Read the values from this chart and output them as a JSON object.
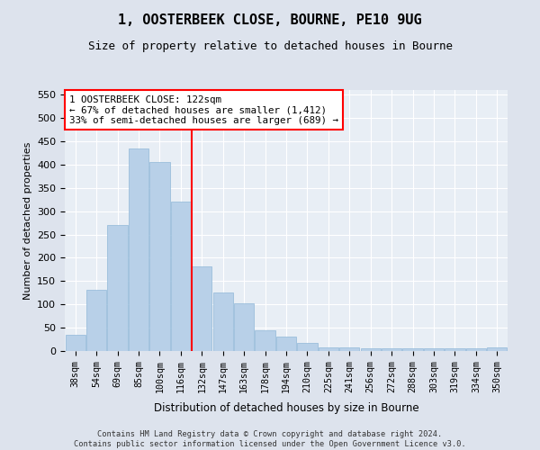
{
  "title": "1, OOSTERBEEK CLOSE, BOURNE, PE10 9UG",
  "subtitle": "Size of property relative to detached houses in Bourne",
  "xlabel": "Distribution of detached houses by size in Bourne",
  "ylabel": "Number of detached properties",
  "categories": [
    "38sqm",
    "54sqm",
    "69sqm",
    "85sqm",
    "100sqm",
    "116sqm",
    "132sqm",
    "147sqm",
    "163sqm",
    "178sqm",
    "194sqm",
    "210sqm",
    "225sqm",
    "241sqm",
    "256sqm",
    "272sqm",
    "288sqm",
    "303sqm",
    "319sqm",
    "334sqm",
    "350sqm"
  ],
  "values": [
    35,
    132,
    270,
    435,
    405,
    320,
    182,
    125,
    103,
    44,
    30,
    18,
    7,
    7,
    5,
    5,
    5,
    5,
    5,
    5,
    8
  ],
  "bar_color": "#b8d0e8",
  "bar_edge_color": "#90b8d8",
  "vline_x": 5.5,
  "vline_color": "red",
  "annotation_title": "1 OOSTERBEEK CLOSE: 122sqm",
  "annotation_line1": "← 67% of detached houses are smaller (1,412)",
  "annotation_line2": "33% of semi-detached houses are larger (689) →",
  "box_color": "red",
  "ylim": [
    0,
    560
  ],
  "yticks": [
    0,
    50,
    100,
    150,
    200,
    250,
    300,
    350,
    400,
    450,
    500,
    550
  ],
  "background_color": "#dde3ed",
  "plot_bg_color": "#e8eef5",
  "footer1": "Contains HM Land Registry data © Crown copyright and database right 2024.",
  "footer2": "Contains public sector information licensed under the Open Government Licence v3.0."
}
